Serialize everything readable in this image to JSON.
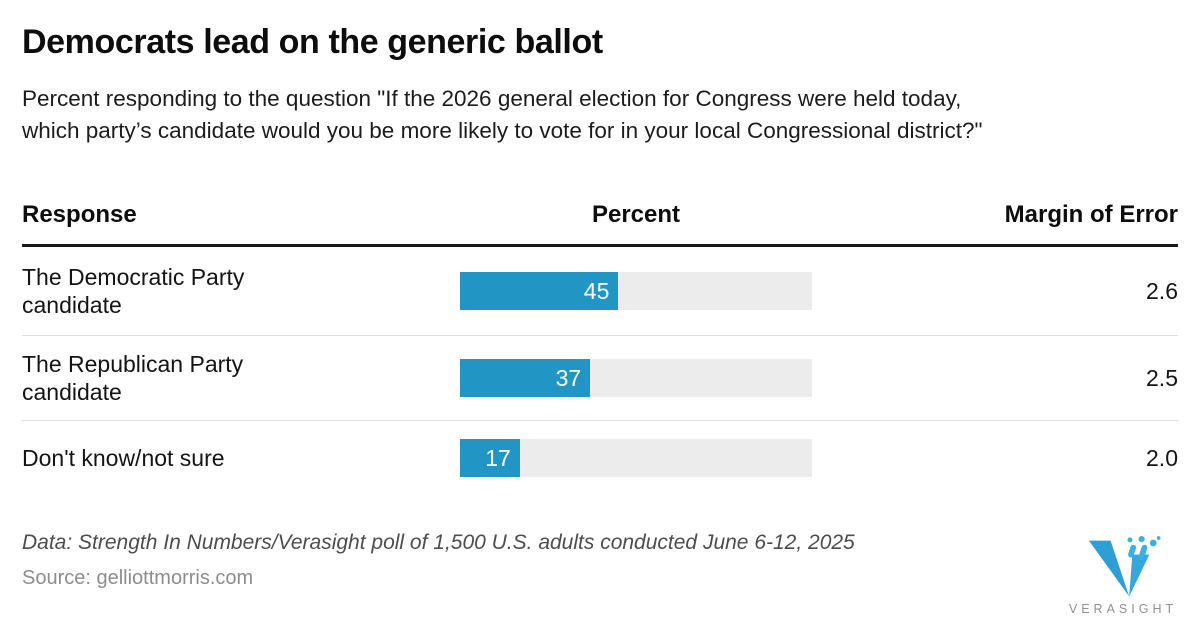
{
  "header": {
    "title": "Democrats lead on the generic ballot",
    "subtitle": "Percent responding to the question \"If the 2026 general election for Congress were held today,\nwhich party’s candidate would you be more likely to vote for in your local Congressional district?\""
  },
  "table": {
    "columns": [
      "Response",
      "Percent",
      "Margin of Error"
    ],
    "bar_max": 100,
    "rows": [
      {
        "response": "The Democratic Party\ncandidate",
        "percent": 45,
        "margin_of_error": "2.6"
      },
      {
        "response": "The Republican Party\ncandidate",
        "percent": 37,
        "margin_of_error": "2.5"
      },
      {
        "response": "Don't know/not sure",
        "percent": 17,
        "margin_of_error": "2.0"
      }
    ]
  },
  "footer": {
    "data_note": "Data: Strength In Numbers/Verasight poll of 1,500 U.S. adults conducted June 6-12, 2025",
    "source": "Source: gelliottmorris.com",
    "logo_text": "VERASIGHT"
  },
  "colors": {
    "bar_fill": "#2196c4",
    "bar_track": "#ececec",
    "header_rule": "#1a1a1a",
    "row_divider": "#dcdcdc",
    "logo_blue": "#2f9ed5"
  },
  "chart_data": {
    "type": "bar",
    "orientation": "horizontal",
    "title": "Democrats lead on the generic ballot",
    "subtitle": "Percent responding to the question \"If the 2026 general election for Congress were held today, which party’s candidate would you be more likely to vote for in your local Congressional district?\"",
    "columns": [
      "Response",
      "Percent",
      "Margin of Error"
    ],
    "categories": [
      "The Democratic Party candidate",
      "The Republican Party candidate",
      "Don't know/not sure"
    ],
    "values": [
      45,
      37,
      17
    ],
    "margins_of_error": [
      2.6,
      2.5,
      2.0
    ],
    "xlim": [
      0,
      100
    ],
    "value_labels_shown": true,
    "grid": false,
    "legend": "none",
    "bar_color": "#2196c4"
  }
}
